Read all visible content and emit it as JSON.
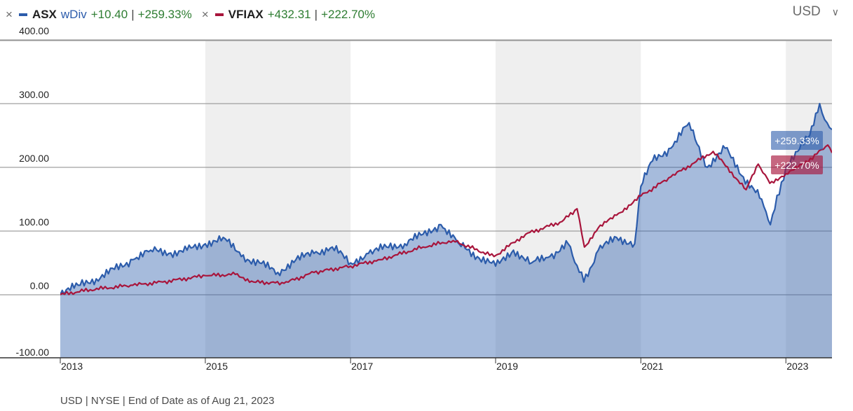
{
  "legend": {
    "close_glyph": "×",
    "series": [
      {
        "ticker": "ASX",
        "qualifier": "wDiv",
        "change": "+10.40",
        "change_pct": "+259.33%",
        "color": "#2c5cab"
      },
      {
        "ticker": "VFIAX",
        "qualifier": "",
        "change": "+432.31",
        "change_pct": "+222.70%",
        "color": "#a8153c"
      }
    ]
  },
  "currency_selector": {
    "label": "USD",
    "chevron": "∨"
  },
  "footer": "USD | NYSE | End of Date as of Aug 21, 2023",
  "chart_data": {
    "type": "line",
    "y_tick_labels": [
      "400.00",
      "300.00",
      "200.00",
      "100.00",
      "0.00",
      "-100.00"
    ],
    "y_ticks": [
      400,
      300,
      200,
      100,
      0,
      -100
    ],
    "ylim": [
      -100,
      400
    ],
    "x_tick_labels": [
      "2013",
      "2015",
      "2017",
      "2019",
      "2021",
      "2023"
    ],
    "x_ticks": [
      "2013-01-01",
      "2015-01-01",
      "2017-01-01",
      "2019-01-01",
      "2021-01-01",
      "2023-01-01"
    ],
    "xlim": [
      "2013-01-01",
      "2023-08-21"
    ],
    "shaded_year_bands": [
      [
        "2015-01-01",
        "2017-01-01"
      ],
      [
        "2019-01-01",
        "2021-01-01"
      ],
      [
        "2023-01-01",
        "2023-08-21"
      ]
    ],
    "grid": true,
    "series": [
      {
        "name": "ASX",
        "color": "#2c5cab",
        "area": true,
        "end_label": "+259.33%",
        "x": [
          "2013-01-01",
          "2013-04-01",
          "2013-07-01",
          "2013-10-01",
          "2014-01-01",
          "2014-04-01",
          "2014-07-01",
          "2014-10-01",
          "2015-01-01",
          "2015-04-01",
          "2015-07-01",
          "2015-10-01",
          "2016-01-01",
          "2016-04-01",
          "2016-07-01",
          "2016-10-01",
          "2017-01-01",
          "2017-04-01",
          "2017-07-01",
          "2017-10-01",
          "2018-01-01",
          "2018-04-01",
          "2018-07-01",
          "2018-10-01",
          "2019-01-01",
          "2019-04-01",
          "2019-07-01",
          "2019-10-01",
          "2020-01-01",
          "2020-03-20",
          "2020-06-01",
          "2020-09-01",
          "2020-12-01",
          "2021-01-01",
          "2021-03-01",
          "2021-06-01",
          "2021-09-01",
          "2021-12-01",
          "2022-03-01",
          "2022-06-01",
          "2022-09-01",
          "2022-10-15",
          "2023-01-01",
          "2023-03-01",
          "2023-05-01",
          "2023-06-20",
          "2023-07-15",
          "2023-08-21"
        ],
        "values": [
          0,
          15,
          25,
          40,
          55,
          70,
          65,
          70,
          80,
          90,
          60,
          50,
          35,
          55,
          65,
          75,
          50,
          65,
          75,
          80,
          95,
          110,
          80,
          60,
          45,
          70,
          50,
          60,
          80,
          20,
          70,
          90,
          80,
          170,
          210,
          230,
          270,
          200,
          230,
          185,
          150,
          110,
          200,
          225,
          250,
          300,
          275,
          259.33
        ]
      },
      {
        "name": "VFIAX",
        "color": "#a8153c",
        "area": false,
        "end_label": "+222.70%",
        "x": [
          "2013-01-01",
          "2013-06-01",
          "2014-01-01",
          "2014-06-01",
          "2015-01-01",
          "2015-06-01",
          "2015-09-01",
          "2016-02-01",
          "2016-07-01",
          "2017-01-01",
          "2017-06-01",
          "2018-01-01",
          "2018-06-01",
          "2018-12-24",
          "2019-06-01",
          "2019-12-01",
          "2020-02-15",
          "2020-03-23",
          "2020-06-01",
          "2020-09-01",
          "2021-01-01",
          "2021-06-01",
          "2021-12-31",
          "2022-06-15",
          "2022-08-15",
          "2022-10-12",
          "2023-01-01",
          "2023-04-01",
          "2023-07-31",
          "2023-08-21"
        ],
        "values": [
          0,
          8,
          15,
          20,
          30,
          32,
          20,
          18,
          35,
          45,
          55,
          75,
          85,
          60,
          95,
          115,
          135,
          75,
          105,
          125,
          155,
          185,
          225,
          165,
          205,
          175,
          190,
          205,
          235,
          222.7
        ]
      }
    ]
  }
}
